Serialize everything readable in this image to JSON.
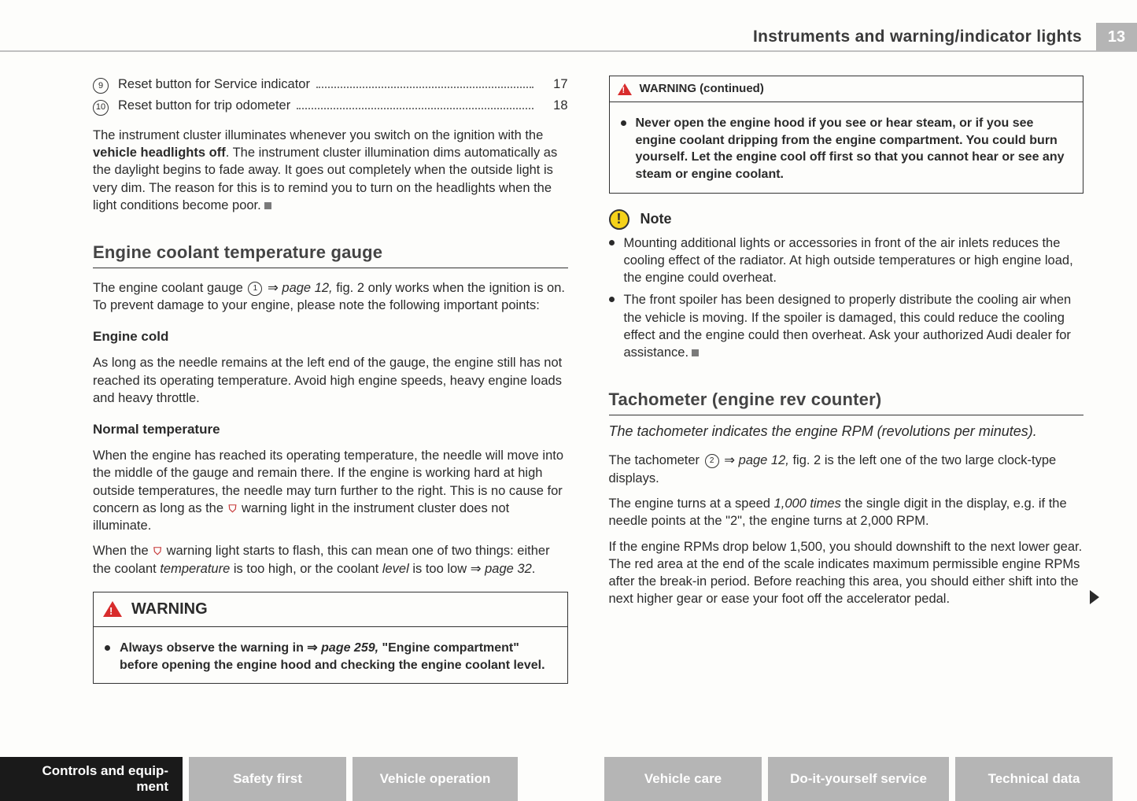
{
  "header": {
    "title": "Instruments and warning/indicator lights",
    "page_num": "13"
  },
  "left": {
    "items": [
      {
        "num": "9",
        "label": "Reset button for Service indicator",
        "page": "17"
      },
      {
        "num": "10",
        "label": "Reset button for trip odometer",
        "page": "18"
      }
    ],
    "intro_a": "The instrument cluster illuminates whenever you switch on the igni­tion with the ",
    "intro_bold": "vehicle headlights off",
    "intro_b": ". The instrument cluster illumina­tion dims automatically as the daylight begins to fade away. It goes out completely when the outside light is very dim. The reason for this is to remind you to turn on the headlights when the light condi­tions become poor.",
    "sec1": "Engine coolant temperature gauge",
    "p1a": "The engine coolant gauge ",
    "p1b": " ⇒ ",
    "p1c": "page 12,",
    "p1d": " fig. 2 only works when the ignition is on. To prevent damage to your engine, please note the following important points:",
    "sub1": "Engine cold",
    "p2": "As long as the needle remains at the left end of the gauge, the engine still has not reached its operating temperature. Avoid high engine speeds, heavy engine loads and heavy throttle.",
    "sub2": "Normal temperature",
    "p3a": "When the engine has reached its operating temperature, the needle will move into the middle of the gauge and remain there. If the engine is working hard at high outside temperatures, the needle may turn further to the right. This is no cause for concern as long as the ",
    "p3b": " warning light in the instrument cluster does not illuminate.",
    "p4a": "When the ",
    "p4b": " warning light starts to flash, this can mean one of two things: either the coolant ",
    "p4_ital1": "temperature",
    "p4c": " is too high, or the coolant ",
    "p4_ital2": "level",
    "p4d": " is too low ⇒ ",
    "p4_ital3": "page 32",
    "p4e": ".",
    "warn_title": "WARNING",
    "warn_body_a": "Always observe the warning in ⇒ ",
    "warn_body_ital": "page 259,",
    "warn_body_b": " \"Engine compart­ment\" before opening the engine hood and checking the engine coolant level."
  },
  "right": {
    "warn2_title": "WARNING (continued)",
    "warn2_body": "Never open the engine hood if you see or hear steam, or if you see engine coolant dripping from the engine compartment. You could burn yourself. Let the engine cool off first so that you cannot hear or see any steam or engine coolant.",
    "note_title": "Note",
    "note1": "Mounting additional lights or accessories in front of the air inlets reduces the cooling effect of the radiator. At high outside tempera­tures or high engine load, the engine could overheat.",
    "note2": "The front spoiler has been designed to properly distribute the cooling air when the vehicle is moving. If the spoiler is damaged, this could reduce the cooling effect and the engine could then over­heat. Ask your authorized Audi dealer for assistance.",
    "sec2": "Tachometer (engine rev counter)",
    "sub_ital": "The tachometer indicates the engine RPM (revolutions per minutes).",
    "t1a": "The tachometer ",
    "t1b": " ⇒ ",
    "t1c": "page 12,",
    "t1d": " fig. 2 is the left one of the two large clock-type displays.",
    "t2a": "The engine turns at a speed ",
    "t2_ital": "1,000 times",
    "t2b": " the single digit in the display, e.g. if the needle points at the \"2\", the engine turns at 2,000 RPM.",
    "t3": "If the engine RPMs drop below 1,500, you should downshift to the next lower gear. The red area at the end of the scale indicates maximum permissible engine RPMs after the break-in period. Before reaching this area, you should either shift into the next higher gear or ease your foot off the accelerator pedal."
  },
  "footer": {
    "t1a": "Controls and equip-",
    "t1b": "ment",
    "t2": "Safety first",
    "t3": "Vehicle operation",
    "t4": "Vehicle care",
    "t5": "Do-it-yourself service",
    "t6": "Technical data"
  },
  "circles": {
    "one": "1",
    "two": "2"
  }
}
